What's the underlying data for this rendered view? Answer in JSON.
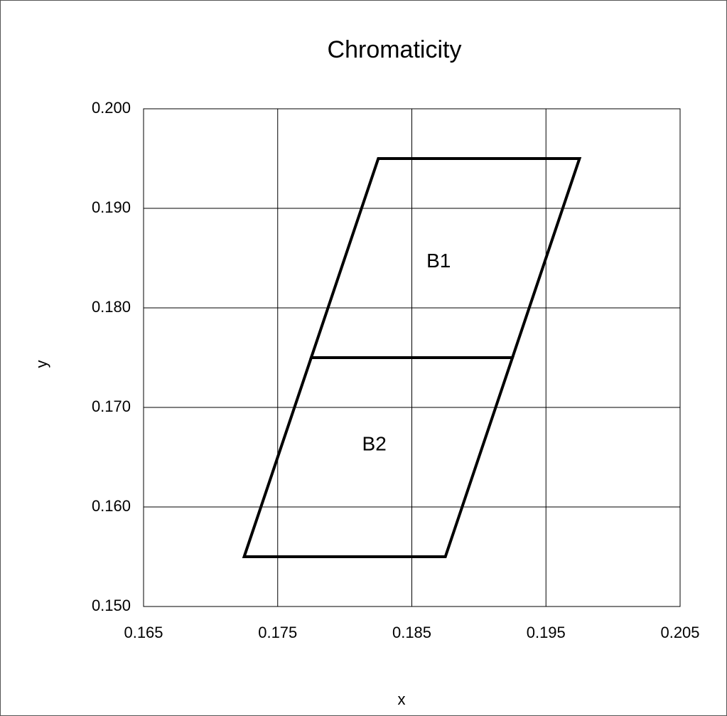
{
  "chart_data": {
    "type": "line",
    "title": "Chromaticity",
    "xlabel": "x",
    "ylabel": "y",
    "series": [
      {
        "color": "#000000",
        "x": [
          0.1825,
          0.1975,
          0.1925,
          0.1775
        ],
        "values": [
          0.195,
          0.195,
          0.175,
          0.175
        ]
      },
      {
        "color": "#000000",
        "x": [
          0.1775,
          0.1925,
          0.1875,
          0.1725
        ],
        "values": [
          0.175,
          0.175,
          0.155,
          0.155
        ]
      }
    ],
    "annotations": [
      {
        "text": "B1",
        "x": 0.187,
        "y": 0.1846
      },
      {
        "text": "B2",
        "x": 0.1822,
        "y": 0.1662
      }
    ],
    "xlim": [
      0.165,
      0.205
    ],
    "xticks": [
      0.165,
      0.175,
      0.185,
      0.195,
      0.205
    ],
    "ylim": [
      0.15,
      0.2
    ],
    "yticks": [
      {
        "value": 0.15,
        "label": "0.150"
      },
      {
        "value": 0.16,
        "label": "0.160"
      },
      {
        "value": 0.17,
        "label": "0.170"
      },
      {
        "value": 0.18,
        "label": "0.180"
      },
      {
        "value": 0.19,
        "label": "0.190"
      },
      {
        "value": 0.2,
        "label": "0.200"
      }
    ],
    "grid": true,
    "closed": true
  }
}
